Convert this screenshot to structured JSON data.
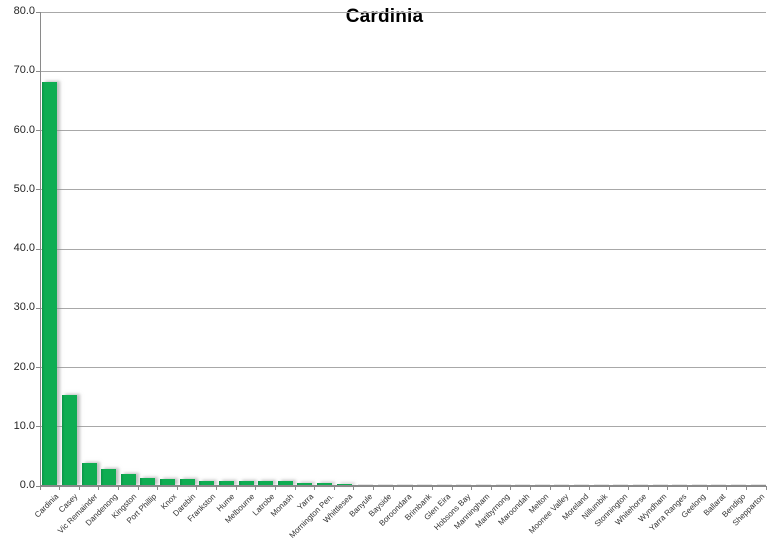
{
  "chart_data": {
    "type": "bar",
    "title": "Cardinia",
    "xlabel": "",
    "ylabel": "",
    "categories": [
      "Cardinia",
      "Casey",
      "Vic Remainder",
      "Dandenong",
      "Kingston",
      "Port Phillip",
      "Knox",
      "Darebin",
      "Frankston",
      "Hume",
      "Melbourne",
      "Latrobe",
      "Monash",
      "Yarra",
      "Mornington Pen.",
      "Whittlesea",
      "Banyule",
      "Bayside",
      "Boroondara",
      "Brimbank",
      "Glen Eira",
      "Hobsons Bay",
      "Manningham",
      "Maribyrnong",
      "Maroondah",
      "Melton",
      "Moonee Valley",
      "Moreland",
      "Nillumbik",
      "Stonnington",
      "Whitehorse",
      "Wyndham",
      "Yarra Ranges",
      "Geelong",
      "Ballarat",
      "Bendigo",
      "Shepparton"
    ],
    "values": [
      68.2,
      15.3,
      3.9,
      2.9,
      2.1,
      1.4,
      1.2,
      1.1,
      0.9,
      0.9,
      0.9,
      0.8,
      0.8,
      0.5,
      0.5,
      0.4,
      0.0,
      0.0,
      0.0,
      0.0,
      0.0,
      0.0,
      0.0,
      0.0,
      0.0,
      0.0,
      0.0,
      0.0,
      0.0,
      0.0,
      0.0,
      0.0,
      0.0,
      0.0,
      0.0,
      0.0,
      0.0
    ],
    "ylim": [
      0,
      80
    ],
    "y_tick_step": 10,
    "y_tick_labels": [
      "80.0",
      "70.0",
      "60.0",
      "50.0",
      "40.0",
      "30.0",
      "20.0",
      "10.0",
      "0.0"
    ],
    "grid": true,
    "legend": false,
    "colors": {
      "bar": "#0FAD52",
      "bar_edge": "#0A9447",
      "bar_shadow": "rgba(140,140,140,0.55)",
      "gridline": "#A8A8A8",
      "axis": "#8a8a8a",
      "title": "#000000",
      "y_tick_text": "#262626",
      "x_tick_text": "#333333",
      "background": "#ffffff"
    }
  }
}
